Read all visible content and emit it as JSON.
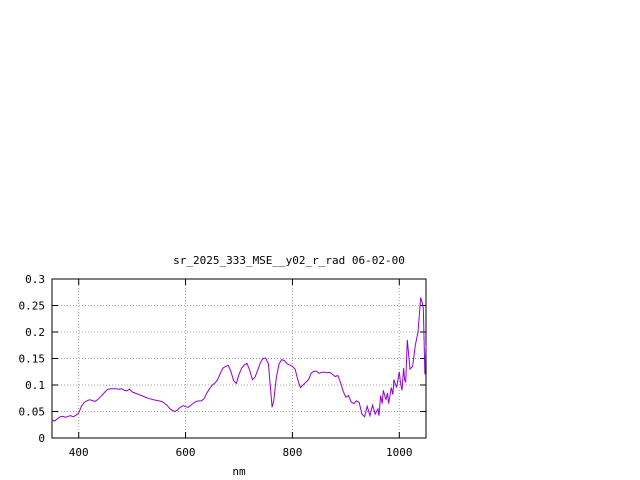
{
  "chart_data": {
    "type": "line",
    "title": "sr_2025_333_MSE__y02_r_rad 06-02-00",
    "xlabel": "nm",
    "ylabel": "",
    "xlim": [
      350,
      1050
    ],
    "ylim": [
      0,
      0.3
    ],
    "x_ticks": [
      {
        "value": 400,
        "label": "400"
      },
      {
        "value": 600,
        "label": "600"
      },
      {
        "value": 800,
        "label": "800"
      },
      {
        "value": 1000,
        "label": "1000"
      }
    ],
    "y_ticks": [
      {
        "value": 0,
        "label": "0"
      },
      {
        "value": 0.05,
        "label": "0.05"
      },
      {
        "value": 0.1,
        "label": "0.1"
      },
      {
        "value": 0.15,
        "label": "0.15"
      },
      {
        "value": 0.2,
        "label": "0.2"
      },
      {
        "value": 0.25,
        "label": "0.25"
      },
      {
        "value": 0.3,
        "label": "0.3"
      }
    ],
    "grid": true,
    "series": [
      {
        "color": "#9400d3",
        "x": [
          350,
          355,
          360,
          365,
          370,
          375,
          380,
          385,
          390,
          395,
          400,
          405,
          410,
          415,
          420,
          425,
          430,
          435,
          440,
          445,
          450,
          455,
          460,
          465,
          470,
          475,
          480,
          485,
          490,
          495,
          500,
          510,
          520,
          530,
          540,
          550,
          555,
          560,
          565,
          570,
          575,
          580,
          585,
          590,
          595,
          600,
          605,
          610,
          615,
          620,
          625,
          630,
          635,
          640,
          645,
          650,
          655,
          660,
          665,
          670,
          675,
          680,
          685,
          690,
          695,
          700,
          705,
          710,
          715,
          720,
          725,
          730,
          735,
          740,
          745,
          750,
          755,
          760,
          762,
          765,
          770,
          775,
          780,
          785,
          790,
          795,
          800,
          805,
          810,
          815,
          820,
          825,
          830,
          835,
          840,
          845,
          850,
          855,
          860,
          865,
          870,
          875,
          880,
          885,
          890,
          895,
          900,
          905,
          910,
          915,
          920,
          925,
          930,
          935,
          940,
          945,
          950,
          955,
          960,
          962,
          965,
          968,
          970,
          975,
          978,
          980,
          985,
          988,
          990,
          995,
          1000,
          1002,
          1005,
          1008,
          1010,
          1012,
          1015,
          1020,
          1025,
          1030,
          1035,
          1040,
          1043,
          1045,
          1048,
          1050
        ],
        "y": [
          0.034,
          0.032,
          0.036,
          0.04,
          0.041,
          0.039,
          0.041,
          0.042,
          0.04,
          0.043,
          0.047,
          0.06,
          0.067,
          0.07,
          0.072,
          0.071,
          0.069,
          0.072,
          0.077,
          0.082,
          0.088,
          0.092,
          0.093,
          0.093,
          0.093,
          0.092,
          0.093,
          0.09,
          0.089,
          0.092,
          0.087,
          0.083,
          0.079,
          0.075,
          0.072,
          0.07,
          0.069,
          0.066,
          0.062,
          0.056,
          0.052,
          0.05,
          0.053,
          0.058,
          0.061,
          0.059,
          0.058,
          0.062,
          0.066,
          0.069,
          0.07,
          0.07,
          0.075,
          0.085,
          0.093,
          0.1,
          0.104,
          0.11,
          0.122,
          0.132,
          0.135,
          0.137,
          0.125,
          0.108,
          0.103,
          0.12,
          0.132,
          0.138,
          0.141,
          0.128,
          0.11,
          0.115,
          0.128,
          0.142,
          0.15,
          0.151,
          0.14,
          0.08,
          0.058,
          0.07,
          0.115,
          0.14,
          0.148,
          0.146,
          0.14,
          0.138,
          0.135,
          0.13,
          0.11,
          0.095,
          0.1,
          0.105,
          0.11,
          0.122,
          0.126,
          0.126,
          0.122,
          0.124,
          0.124,
          0.123,
          0.124,
          0.12,
          0.116,
          0.118,
          0.105,
          0.088,
          0.077,
          0.08,
          0.068,
          0.065,
          0.07,
          0.067,
          0.045,
          0.04,
          0.06,
          0.042,
          0.062,
          0.045,
          0.055,
          0.042,
          0.08,
          0.065,
          0.09,
          0.072,
          0.085,
          0.065,
          0.095,
          0.082,
          0.11,
          0.095,
          0.125,
          0.105,
          0.09,
          0.132,
          0.11,
          0.105,
          0.185,
          0.13,
          0.135,
          0.175,
          0.2,
          0.265,
          0.255,
          0.245,
          0.12,
          0.175
        ]
      }
    ]
  }
}
